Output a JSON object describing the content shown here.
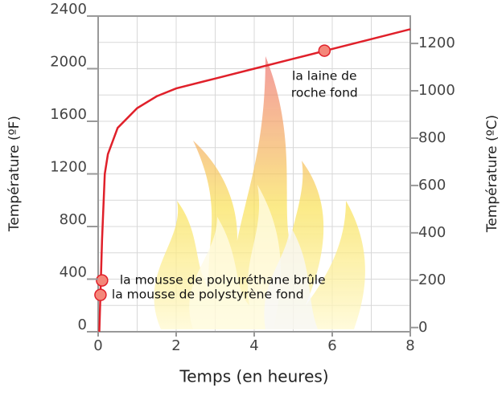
{
  "chart_data": {
    "type": "line",
    "x_label": "Temps (en heures)",
    "y_label": "Température  (ºF)",
    "y2_label": "Température  (ºC)",
    "xlim": [
      0,
      8
    ],
    "xticks": [
      0,
      2,
      4,
      6,
      8
    ],
    "ylim": [
      0,
      2400
    ],
    "yticks": [
      0,
      400,
      800,
      1200,
      1600,
      2000,
      2400
    ],
    "y2lim": [
      -17.8,
      1315.6
    ],
    "y2ticks": [
      0,
      200,
      400,
      600,
      800,
      1000,
      1200
    ],
    "grid": true,
    "series": [
      {
        "color": "#e0202a",
        "x": [
          0.03,
          0.1,
          0.17,
          0.25,
          0.5,
          1,
          1.5,
          2,
          3,
          4,
          5,
          6,
          7,
          8
        ],
        "values": [
          0,
          700,
          1200,
          1350,
          1550,
          1700,
          1790,
          1850,
          1925,
          2000,
          2075,
          2150,
          2225,
          2300
        ]
      }
    ],
    "annotations": [
      {
        "lines": [
          "la mousse de polyuréthane brûle"
        ],
        "x": 0.1,
        "y": 390
      },
      {
        "lines": [
          "la mousse de polystyrène fond"
        ],
        "x": 0.06,
        "y": 280
      },
      {
        "lines": [
          "la laine de",
          "roche fond"
        ],
        "x": 5.8,
        "y": 2137
      }
    ],
    "marker_color": "#f4877a"
  }
}
